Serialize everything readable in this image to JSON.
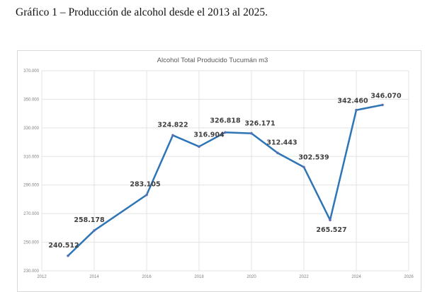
{
  "document": {
    "caption": "Gráfico 1 – Producción de alcohol desde el 2013 al 2025."
  },
  "chart_data": {
    "type": "line",
    "title": "Alcohol  Total Producido Tucumán m3",
    "xlabel": "",
    "ylabel": "",
    "x": [
      2013,
      2014,
      2016,
      2017,
      2018,
      2019,
      2020,
      2021,
      2022,
      2023,
      2024,
      2025
    ],
    "series": [
      {
        "values": [
          240512,
          258178,
          283105,
          324822,
          316904,
          326818,
          326171,
          312443,
          302539,
          265527,
          342460,
          346070
        ]
      }
    ],
    "data_labels": [
      "240.512",
      "258.178",
      "283.105",
      "324.822",
      "316.904",
      "326.818",
      "326.171",
      "312.443",
      "302.539",
      "265.527",
      "342.460",
      "346.070"
    ],
    "xlim": [
      2012,
      2026
    ],
    "ylim": [
      230000,
      370000
    ],
    "x_ticks": [
      "2012",
      "2014",
      "2016",
      "2018",
      "2020",
      "2022",
      "2024",
      "2026"
    ],
    "y_ticks": [
      "230.000",
      "250.000",
      "270.000",
      "290.000",
      "310.000",
      "330.000",
      "350.000",
      "370.000"
    ],
    "grid": true,
    "legend": "none",
    "line_color": "#2e75b6"
  }
}
